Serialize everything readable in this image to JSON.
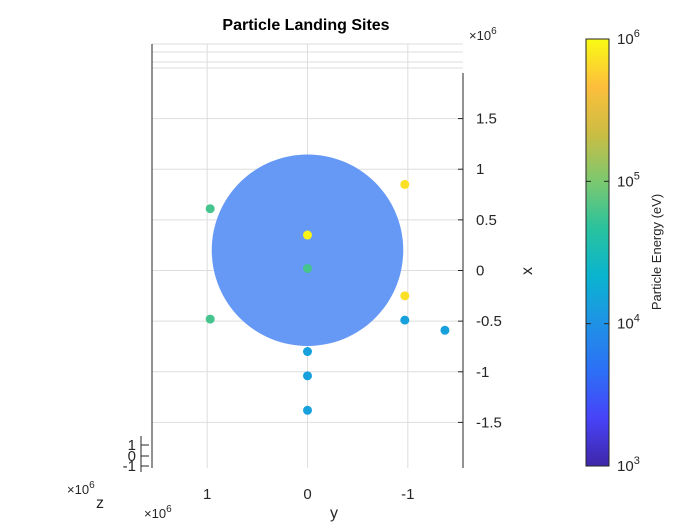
{
  "chart_data": {
    "type": "scatter",
    "title": "Particle Landing Sites",
    "xlabel": "x",
    "ylabel": "y",
    "zlabel": "z",
    "x_multiplier": "×10",
    "x_multiplier_exp": "6",
    "y_multiplier": "×10",
    "y_multiplier_exp": "6",
    "z_multiplier": "×10",
    "z_multiplier_exp": "6",
    "x_ticks": [
      "1.5",
      "1",
      "0.5",
      "0",
      "-0.5",
      "-1",
      "-1.5"
    ],
    "x_tick_values": [
      1.5,
      1,
      0.5,
      0,
      -0.5,
      -1,
      -1.5
    ],
    "y_ticks": [
      "1",
      "0",
      "-1"
    ],
    "y_tick_values": [
      1,
      0,
      -1
    ],
    "z_ticks": [
      "1",
      "0",
      "-1"
    ],
    "y_range": [
      1.55,
      -1.55
    ],
    "x_range": [
      -1.95,
      1.95
    ],
    "sphere": {
      "radius": 1.72,
      "color": "#6699f5"
    },
    "points": [
      {
        "y": 0.0,
        "x": 0.35,
        "energy": 900000
      },
      {
        "y": -0.97,
        "x": 0.85,
        "energy": 700000
      },
      {
        "y": -0.97,
        "x": -0.25,
        "energy": 700000
      },
      {
        "y": 0.97,
        "x": 0.61,
        "energy": 60000
      },
      {
        "y": 0.0,
        "x": 0.02,
        "energy": 60000
      },
      {
        "y": 0.97,
        "x": -0.48,
        "energy": 60000
      },
      {
        "y": -0.97,
        "x": -0.49,
        "energy": 14000
      },
      {
        "y": -1.37,
        "x": -0.59,
        "energy": 14000
      },
      {
        "y": 0.0,
        "x": -0.8,
        "energy": 14000
      },
      {
        "y": 0.0,
        "x": -1.04,
        "energy": 14000
      },
      {
        "y": 0.0,
        "x": -1.38,
        "energy": 14000
      }
    ],
    "colorbar": {
      "label": "Particle Energy (eV)",
      "scale": "log",
      "min": 1000,
      "max": 1000000,
      "tick_base": "10",
      "tick_exps": [
        "3",
        "4",
        "5",
        "6"
      ],
      "colormap": [
        "#3e26a8",
        "#4743f8",
        "#2d6ff6",
        "#1f92e6",
        "#0ab4cf",
        "#29c29e",
        "#7cc86f",
        "#cbbd43",
        "#fdbe3c",
        "#f9fb15"
      ]
    }
  }
}
